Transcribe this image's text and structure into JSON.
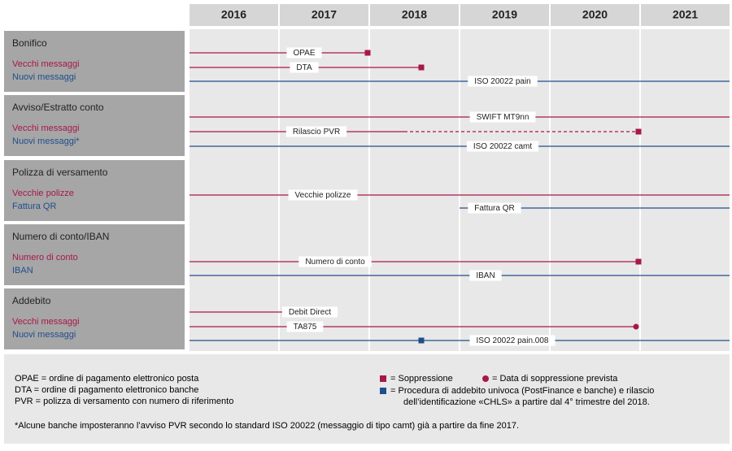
{
  "header": {
    "years": [
      "2016",
      "2017",
      "2018",
      "2019",
      "2020",
      "2021"
    ]
  },
  "sections": [
    {
      "title": "Bonifico",
      "items": [
        "Vecchi messaggi",
        "Nuovi messaggi"
      ],
      "lines": [
        "OPAE",
        "DTA",
        "ISO 20022 pain"
      ]
    },
    {
      "title": "Avviso/Estratto conto",
      "items": [
        "Vecchi messaggi",
        "Nuovi messaggi*"
      ],
      "lines": [
        "SWIFT MT9nn",
        "Rilascio PVR",
        "ISO 20022 camt"
      ]
    },
    {
      "title": "Polizza di versamento",
      "items": [
        "Vecchie polizze",
        "Fattura QR"
      ],
      "lines": [
        "Vecchie polizze",
        "Fattura QR"
      ]
    },
    {
      "title": "Numero di conto/IBAN",
      "items": [
        "Numero di conto",
        "IBAN"
      ],
      "lines": [
        "Numero di conto",
        "IBAN"
      ]
    },
    {
      "title": "Addebito",
      "items": [
        "Vecchi messaggi",
        "Nuovi messaggi"
      ],
      "lines": [
        "Debit Direct",
        "TA875",
        "ISO 20022 pain.008"
      ]
    }
  ],
  "legend": {
    "abbreviations": [
      "OPAE = ordine di pagamento elettronico posta",
      "DTA = ordine di pagamento elettronico banche",
      "PVR = polizza di versamento con numero di riferimento"
    ],
    "symbols": [
      "= Soppressione",
      "= Data di soppressione prevista",
      "= Procedura di addebito univoca (PostFinance e banche) e rilascio",
      "dell’identificazione «CHLS» a partire dal 4° trimestre del 2018."
    ]
  },
  "footnote": "*Alcune banche imposteranno l’avviso PVR secondo lo standard ISO 20022 (messaggio di tipo camt) già a partire da fine 2017."
}
